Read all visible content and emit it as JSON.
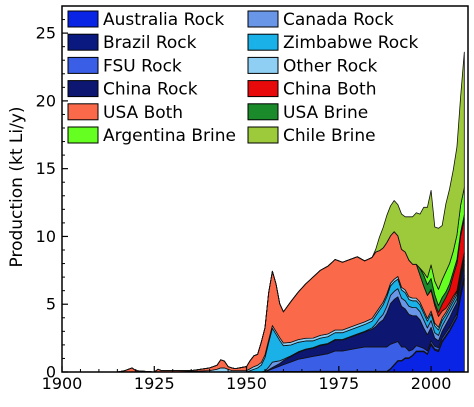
{
  "chart_data": {
    "type": "area",
    "stacked": true,
    "title": "",
    "xlabel": "",
    "ylabel": "Production (kt Li/y)",
    "xlim": [
      1900,
      2010
    ],
    "ylim": [
      0,
      27
    ],
    "xticks": [
      1900,
      1925,
      1950,
      1975,
      2000
    ],
    "yticks": [
      0,
      5,
      10,
      15,
      20,
      25
    ],
    "grid": false,
    "legend_position": "top-left, inside, two columns",
    "x": [
      1900,
      1915,
      1917,
      1918,
      1919,
      1920,
      1925,
      1926,
      1927,
      1930,
      1935,
      1940,
      1942,
      1943,
      1944,
      1945,
      1946,
      1947,
      1948,
      1950,
      1951,
      1952,
      1953,
      1954,
      1955,
      1956,
      1957,
      1958,
      1959,
      1960,
      1962,
      1964,
      1966,
      1968,
      1970,
      1972,
      1974,
      1976,
      1978,
      1980,
      1982,
      1984,
      1985,
      1986,
      1987,
      1988,
      1989,
      1990,
      1991,
      1992,
      1993,
      1994,
      1995,
      1996,
      1997,
      1998,
      1999,
      2000,
      2001,
      2002,
      2003,
      2004,
      2005,
      2006,
      2007,
      2008,
      2009
    ],
    "series": [
      {
        "name": "Australia Rock",
        "color": "#0a24e6",
        "values": [
          0,
          0,
          0,
          0,
          0,
          0,
          0,
          0,
          0,
          0,
          0,
          0,
          0,
          0,
          0,
          0,
          0,
          0,
          0,
          0,
          0,
          0,
          0,
          0,
          0,
          0,
          0,
          0,
          0,
          0,
          0,
          0,
          0,
          0,
          0,
          0,
          0,
          0,
          0,
          0,
          0,
          0,
          0,
          0,
          0,
          0,
          0.2,
          0.5,
          0.8,
          0.8,
          1.0,
          1.0,
          1.2,
          1.5,
          1.5,
          1.5,
          1.3,
          2.0,
          1.6,
          1.5,
          2.2,
          2.6,
          3.0,
          3.5,
          4.0,
          5.5,
          6.8
        ]
      },
      {
        "name": "Brazil Rock",
        "color": "#0a197f",
        "values": [
          0,
          0,
          0,
          0,
          0,
          0,
          0,
          0,
          0,
          0,
          0,
          0,
          0,
          0,
          0,
          0,
          0,
          0,
          0,
          0,
          0,
          0,
          0,
          0.01,
          0.02,
          0.02,
          0.03,
          0.03,
          0.03,
          0.04,
          0.04,
          0.04,
          0.04,
          0.05,
          0.05,
          0.05,
          0.05,
          0.05,
          0.05,
          0.05,
          0.05,
          0.05,
          0.05,
          0.05,
          0.05,
          0.05,
          0.05,
          0.05,
          0.05,
          0.05,
          0.05,
          0.05,
          0.05,
          0.05,
          0.05,
          0.05,
          0.05,
          0.1,
          0.1,
          0.1,
          0.1,
          0.1,
          0.1,
          0.1,
          0.1,
          0.1,
          0.1
        ]
      },
      {
        "name": "FSU Rock",
        "color": "#3a5ee6",
        "values": [
          0,
          0,
          0,
          0,
          0,
          0,
          0,
          0,
          0,
          0,
          0,
          0,
          0,
          0,
          0,
          0,
          0,
          0,
          0,
          0,
          0,
          0,
          0,
          0,
          0,
          0.1,
          0.2,
          0.3,
          0.4,
          0.5,
          0.7,
          0.9,
          1.0,
          1.1,
          1.2,
          1.3,
          1.5,
          1.5,
          1.6,
          1.7,
          1.8,
          1.8,
          1.8,
          1.8,
          1.8,
          1.8,
          1.8,
          1.6,
          1.4,
          1.0,
          0.8,
          0.5,
          0.4,
          0.4,
          0.3,
          0.2,
          0.2,
          0.2,
          0.2,
          0.2,
          0.2,
          0.2,
          0.2,
          0.2,
          0.2,
          0.2,
          0.2
        ]
      },
      {
        "name": "China Rock",
        "color": "#0d1670",
        "values": [
          0,
          0,
          0,
          0,
          0,
          0,
          0,
          0,
          0,
          0,
          0,
          0,
          0,
          0,
          0,
          0,
          0,
          0,
          0,
          0,
          0,
          0,
          0,
          0,
          0,
          0.05,
          0.1,
          0.15,
          0.2,
          0.3,
          0.4,
          0.5,
          0.6,
          0.6,
          0.7,
          0.7,
          0.8,
          0.8,
          0.9,
          1.0,
          1.1,
          1.3,
          1.5,
          1.8,
          2.0,
          2.5,
          3.0,
          3.2,
          3.3,
          3.0,
          2.8,
          2.7,
          2.5,
          2.2,
          2.0,
          1.5,
          1.2,
          1.0,
          0.6,
          0.5,
          0.5,
          0.6,
          0.7,
          0.8,
          0.8,
          0.8,
          0.8
        ]
      },
      {
        "name": "Canada Rock",
        "color": "#6a96e8",
        "values": [
          0,
          0,
          0,
          0,
          0,
          0,
          0,
          0,
          0,
          0,
          0,
          0,
          0,
          0,
          0,
          0,
          0,
          0,
          0,
          0,
          0,
          0,
          0,
          0,
          0.05,
          0.2,
          0.4,
          0.3,
          0.2,
          0.1,
          0.05,
          0.05,
          0.05,
          0.05,
          0.05,
          0.05,
          0.05,
          0.05,
          0.05,
          0.05,
          0.05,
          0.1,
          0.2,
          0.3,
          0.4,
          0.5,
          0.6,
          0.6,
          0.6,
          0.6,
          0.6,
          0.6,
          0.6,
          0.6,
          0.6,
          0.6,
          0.5,
          0.5,
          0.4,
          0.4,
          0.4,
          0.4,
          0.4,
          0.3,
          0.3,
          0.3,
          0.3
        ]
      },
      {
        "name": "Zimbabwe Rock",
        "color": "#1ab0e8",
        "values": [
          0,
          0,
          0,
          0,
          0,
          0,
          0,
          0,
          0,
          0,
          0,
          0,
          0,
          0,
          0,
          0,
          0,
          0,
          0,
          0,
          0.1,
          0.2,
          0.3,
          0.5,
          1.0,
          1.8,
          2.5,
          2.0,
          1.5,
          1.0,
          0.8,
          0.7,
          0.6,
          0.5,
          0.5,
          0.5,
          0.5,
          0.5,
          0.5,
          0.5,
          0.5,
          0.5,
          0.6,
          0.6,
          0.7,
          0.7,
          0.7,
          0.7,
          0.7,
          0.6,
          0.6,
          0.5,
          0.5,
          0.5,
          0.5,
          0.5,
          0.5,
          0.5,
          0.5,
          0.4,
          0.4,
          0.3,
          0.3,
          0.3,
          0.3,
          0.3,
          0.3
        ]
      },
      {
        "name": "Other Rock",
        "color": "#8ecff3",
        "values": [
          0,
          0,
          0,
          0,
          0,
          0,
          0,
          0,
          0,
          0,
          0.05,
          0.1,
          0.2,
          0.3,
          0.3,
          0.2,
          0.1,
          0.1,
          0.1,
          0.1,
          0.15,
          0.2,
          0.2,
          0.2,
          0.2,
          0.2,
          0.2,
          0.2,
          0.2,
          0.2,
          0.2,
          0.2,
          0.2,
          0.2,
          0.2,
          0.2,
          0.2,
          0.2,
          0.2,
          0.2,
          0.2,
          0.2,
          0.2,
          0.2,
          0.2,
          0.2,
          0.2,
          0.2,
          0.2,
          0.2,
          0.2,
          0.2,
          0.2,
          0.2,
          0.2,
          0.2,
          0.2,
          0.2,
          0.2,
          0.2,
          0.2,
          0.2,
          0.2,
          0.2,
          0.2,
          0.2,
          0.2
        ]
      },
      {
        "name": "USA Both",
        "color": "#fa6a4a",
        "values": [
          0,
          0,
          0.1,
          0.2,
          0.3,
          0.1,
          0,
          0.2,
          0.1,
          0.1,
          0.05,
          0.2,
          0.3,
          0.6,
          0.5,
          0.2,
          0.2,
          0.15,
          0.2,
          0.3,
          0.6,
          0.8,
          0.8,
          1.5,
          2.0,
          3.5,
          4.0,
          3.5,
          2.5,
          2.3,
          3.0,
          3.5,
          4.0,
          4.5,
          4.8,
          5.0,
          5.2,
          5.0,
          5.0,
          5.0,
          4.5,
          4.5,
          4.5,
          4.2,
          4.0,
          3.8,
          3.5,
          3.5,
          3.0,
          2.8,
          2.8,
          2.7,
          2.5,
          2.5,
          2.0,
          1.8,
          1.7,
          1.5,
          1.3,
          0.8,
          0.5,
          0.3,
          0.2,
          0.2,
          0.1,
          0.1,
          0.1
        ]
      },
      {
        "name": "China Both",
        "color": "#e80a0a",
        "values": [
          0,
          0,
          0,
          0,
          0,
          0,
          0,
          0,
          0,
          0,
          0,
          0,
          0,
          0,
          0,
          0,
          0,
          0,
          0,
          0,
          0,
          0,
          0,
          0,
          0,
          0,
          0,
          0,
          0,
          0,
          0,
          0,
          0,
          0,
          0,
          0,
          0,
          0,
          0,
          0,
          0,
          0,
          0,
          0,
          0,
          0,
          0,
          0,
          0,
          0,
          0,
          0,
          0,
          0,
          0,
          0,
          0,
          0.1,
          0.2,
          0.3,
          0.5,
          0.8,
          1.0,
          1.5,
          2.0,
          2.5,
          2.5
        ]
      },
      {
        "name": "USA Brine",
        "color": "#1a8a2a",
        "values": [
          0,
          0,
          0,
          0,
          0,
          0,
          0,
          0,
          0,
          0,
          0,
          0,
          0,
          0,
          0,
          0,
          0,
          0,
          0,
          0,
          0,
          0,
          0,
          0,
          0,
          0,
          0,
          0,
          0,
          0,
          0,
          0,
          0,
          0,
          0,
          0,
          0,
          0,
          0,
          0,
          0,
          0,
          0,
          0,
          0,
          0,
          0,
          0,
          0,
          0,
          0,
          0,
          0,
          0,
          0.5,
          0.8,
          0.8,
          0.8,
          0.6,
          0.5,
          0.5,
          0.4,
          0.4,
          0.3,
          0.3,
          0.3,
          0.3
        ]
      },
      {
        "name": "Argentina Brine",
        "color": "#66ff22",
        "values": [
          0,
          0,
          0,
          0,
          0,
          0,
          0,
          0,
          0,
          0,
          0,
          0,
          0,
          0,
          0,
          0,
          0,
          0,
          0,
          0,
          0,
          0,
          0,
          0,
          0,
          0,
          0,
          0,
          0,
          0,
          0,
          0,
          0,
          0,
          0,
          0,
          0,
          0,
          0,
          0,
          0,
          0,
          0,
          0,
          0,
          0,
          0,
          0,
          0,
          0,
          0,
          0,
          0,
          0,
          0,
          0.2,
          0.5,
          1.0,
          1.0,
          1.2,
          1.3,
          1.5,
          1.5,
          1.5,
          1.8,
          2.0,
          2.0
        ]
      },
      {
        "name": "Chile Brine",
        "color": "#9cca3a",
        "values": [
          0,
          0,
          0,
          0,
          0,
          0,
          0,
          0,
          0,
          0,
          0,
          0,
          0,
          0,
          0,
          0,
          0,
          0,
          0,
          0,
          0,
          0,
          0,
          0,
          0,
          0,
          0,
          0,
          0,
          0,
          0,
          0,
          0,
          0,
          0,
          0,
          0,
          0,
          0,
          0,
          0,
          0,
          0.2,
          1.0,
          1.5,
          2.0,
          2.2,
          2.3,
          2.3,
          2.6,
          2.6,
          3.2,
          3.5,
          3.8,
          4.0,
          4.8,
          5.2,
          5.5,
          4.0,
          4.5,
          4.0,
          5.0,
          5.5,
          6.0,
          6.5,
          8.0,
          10.0
        ]
      }
    ]
  }
}
